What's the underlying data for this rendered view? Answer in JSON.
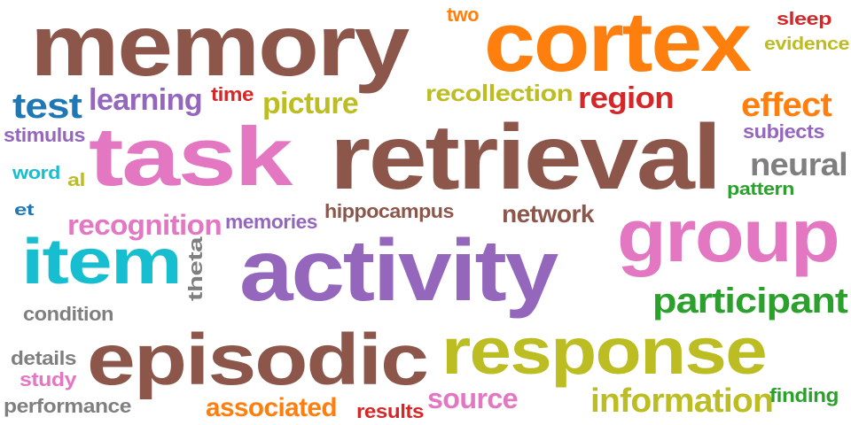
{
  "palette": {
    "brown": "#8c564b",
    "orange": "#ff7f0e",
    "pink": "#e377c2",
    "purple": "#9467bd",
    "cyan": "#17becf",
    "olive": "#bcbd22",
    "green": "#2ca02c",
    "red": "#d62728",
    "blue": "#1f77b4",
    "gray": "#7f7f7f"
  },
  "words": [
    {
      "text": "memory",
      "color": "#8c564b"
    },
    {
      "text": "cortex",
      "color": "#ff7f0e"
    },
    {
      "text": "two",
      "color": "#ff7f0e"
    },
    {
      "text": "sleep",
      "color": "#d62728"
    },
    {
      "text": "evidence",
      "color": "#bcbd22"
    },
    {
      "text": "test",
      "color": "#1f77b4"
    },
    {
      "text": "learning",
      "color": "#9467bd"
    },
    {
      "text": "time",
      "color": "#d62728"
    },
    {
      "text": "picture",
      "color": "#bcbd22"
    },
    {
      "text": "recollection",
      "color": "#bcbd22"
    },
    {
      "text": "region",
      "color": "#d62728"
    },
    {
      "text": "effect",
      "color": "#ff7f0e"
    },
    {
      "text": "stimulus",
      "color": "#9467bd"
    },
    {
      "text": "task",
      "color": "#e377c2"
    },
    {
      "text": "retrieval",
      "color": "#8c564b"
    },
    {
      "text": "subjects",
      "color": "#9467bd"
    },
    {
      "text": "neural",
      "color": "#7f7f7f"
    },
    {
      "text": "word",
      "color": "#17becf"
    },
    {
      "text": "al",
      "color": "#bcbd22"
    },
    {
      "text": "pattern",
      "color": "#2ca02c"
    },
    {
      "text": "et",
      "color": "#1f77b4"
    },
    {
      "text": "hippocampus",
      "color": "#8c564b"
    },
    {
      "text": "network",
      "color": "#8c564b"
    },
    {
      "text": "group",
      "color": "#e377c2"
    },
    {
      "text": "recognition",
      "color": "#e377c2"
    },
    {
      "text": "memories",
      "color": "#9467bd"
    },
    {
      "text": "item",
      "color": "#17becf"
    },
    {
      "text": "theta",
      "color": "#7f7f7f"
    },
    {
      "text": "activity",
      "color": "#9467bd"
    },
    {
      "text": "participant",
      "color": "#2ca02c"
    },
    {
      "text": "condition",
      "color": "#7f7f7f"
    },
    {
      "text": "episodic",
      "color": "#8c564b"
    },
    {
      "text": "response",
      "color": "#bcbd22"
    },
    {
      "text": "details",
      "color": "#7f7f7f"
    },
    {
      "text": "study",
      "color": "#e377c2"
    },
    {
      "text": "performance",
      "color": "#7f7f7f"
    },
    {
      "text": "associated",
      "color": "#ff7f0e"
    },
    {
      "text": "results",
      "color": "#d62728"
    },
    {
      "text": "source",
      "color": "#e377c2"
    },
    {
      "text": "information",
      "color": "#bcbd22"
    },
    {
      "text": "finding",
      "color": "#2ca02c"
    }
  ]
}
